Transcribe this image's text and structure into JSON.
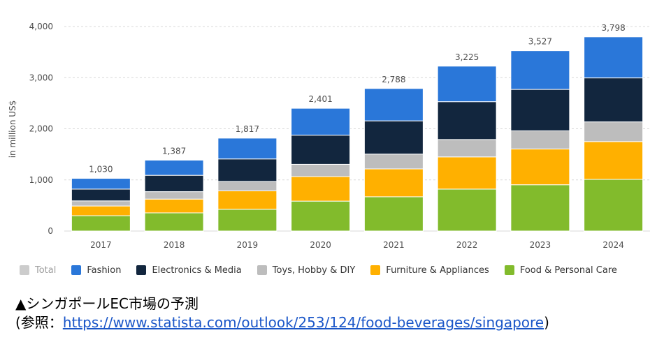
{
  "chart_data": {
    "type": "stacked-bar",
    "ylabel": "in million US$",
    "ylim": [
      0,
      4000
    ],
    "yticks": [
      0,
      1000,
      2000,
      3000,
      4000
    ],
    "ytick_labels": [
      "0",
      "1,000",
      "2,000",
      "3,000",
      "4,000"
    ],
    "grid": true,
    "legend_position": "bottom",
    "categories": [
      "2017",
      "2018",
      "2019",
      "2020",
      "2021",
      "2022",
      "2023",
      "2024"
    ],
    "totals": [
      1030,
      1387,
      1817,
      2401,
      2788,
      3225,
      3527,
      3798
    ],
    "total_labels": [
      "1,030",
      "1,387",
      "1,817",
      "2,401",
      "2,788",
      "3,225",
      "3,527",
      "3,798"
    ],
    "series": [
      {
        "name": "Food & Personal Care",
        "color": "#82bb2c",
        "values": [
          300,
          355,
          425,
          585,
          670,
          820,
          905,
          1010
        ]
      },
      {
        "name": "Furniture & Appliances",
        "color": "#ffb000",
        "values": [
          190,
          270,
          360,
          480,
          545,
          630,
          700,
          740
        ]
      },
      {
        "name": "Toys, Hobby & DIY",
        "color": "#bdbdbd",
        "values": [
          100,
          145,
          185,
          240,
          290,
          340,
          355,
          385
        ]
      },
      {
        "name": "Electronics & Media",
        "color": "#12263e",
        "values": [
          230,
          320,
          440,
          570,
          650,
          740,
          810,
          860
        ]
      },
      {
        "name": "Fashion",
        "color": "#2a77d9",
        "values": [
          210,
          297,
          407,
          526,
          633,
          695,
          757,
          803
        ]
      }
    ]
  },
  "legend": {
    "items": [
      {
        "label": "Total",
        "color": "#cccccc",
        "muted": true
      },
      {
        "label": "Fashion",
        "color": "#2a77d9",
        "muted": false
      },
      {
        "label": "Electronics & Media",
        "color": "#12263e",
        "muted": false
      },
      {
        "label": "Toys, Hobby & DIY",
        "color": "#bdbdbd",
        "muted": false
      },
      {
        "label": "Furniture & Appliances",
        "color": "#ffb000",
        "muted": false
      },
      {
        "label": "Food & Personal Care",
        "color": "#82bb2c",
        "muted": false
      }
    ]
  },
  "caption": {
    "title": "▲シンガポールEC市場の予測",
    "ref_prefix": "(参照：",
    "ref_link": "https://www.statista.com/outlook/253/124/food-beverages/singapore",
    "ref_suffix": ")"
  }
}
